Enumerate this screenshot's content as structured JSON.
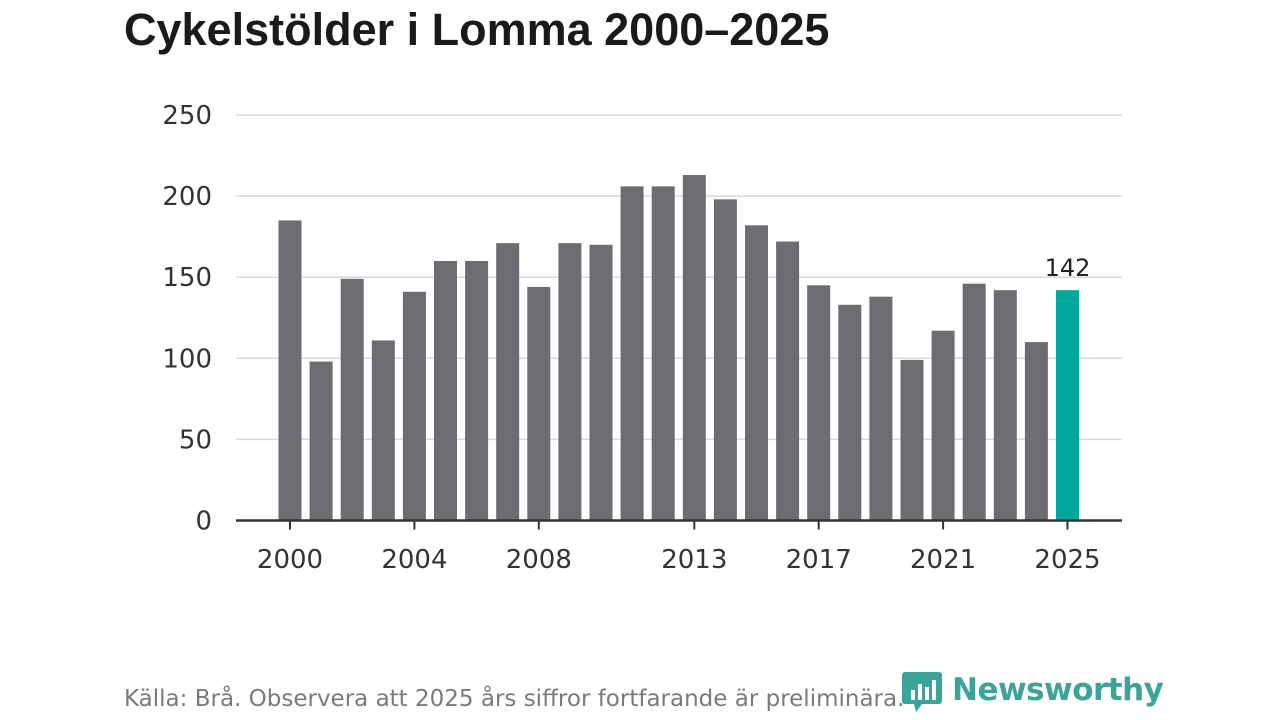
{
  "title": "Cykelstölder i Lomma 2000–2025",
  "footer": "Källa: Brå. Observera att 2025 års siffror fortfarande är preliminära.",
  "brand": {
    "name": "Newsworthy",
    "icon": "newsworthy-logo-icon"
  },
  "colors": {
    "bar": "#6d6c73",
    "highlight": "#00a79d",
    "grid": "#d9d9d9",
    "axis": "#333333",
    "text": "#333333"
  },
  "chart_data": {
    "type": "bar",
    "title": "Cykelstölder i Lomma 2000–2025",
    "xlabel": "",
    "ylabel": "",
    "ylim": [
      0,
      250
    ],
    "yticks": [
      0,
      50,
      100,
      150,
      200,
      250
    ],
    "xticks": [
      "2000",
      "2004",
      "2008",
      "2013",
      "2017",
      "2021",
      "2025"
    ],
    "categories": [
      "2000",
      "2001",
      "2002",
      "2003",
      "2004",
      "2005",
      "2006",
      "2007",
      "2008",
      "2009",
      "2010",
      "2011",
      "2012",
      "2013",
      "2014",
      "2015",
      "2016",
      "2017",
      "2018",
      "2019",
      "2020",
      "2021",
      "2022",
      "2023",
      "2024",
      "2025"
    ],
    "values": [
      185,
      98,
      149,
      111,
      141,
      160,
      160,
      171,
      144,
      171,
      170,
      206,
      206,
      213,
      198,
      182,
      172,
      145,
      133,
      138,
      99,
      117,
      146,
      142,
      110,
      142
    ],
    "highlight_index": 25,
    "annotations": [
      {
        "category": "2025",
        "label": "142"
      }
    ],
    "grid": true
  }
}
